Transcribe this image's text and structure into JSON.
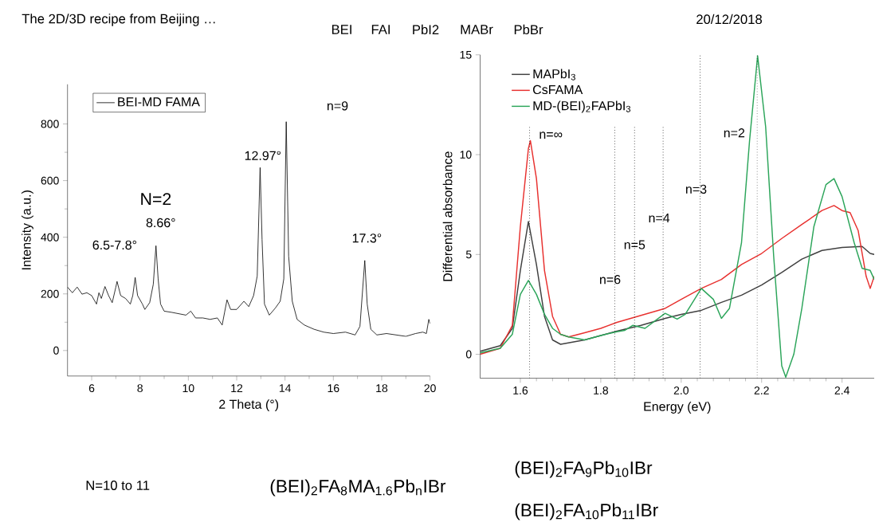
{
  "chart_data": [
    {
      "type": "line",
      "xlabel": "2 Theta (°)",
      "ylabel": "Intensity (a.u.)",
      "x": [
        5.0,
        5.2,
        5.4,
        5.6,
        5.8,
        6.0,
        6.2,
        6.3,
        6.4,
        6.55,
        6.7,
        6.85,
        7.0,
        7.05,
        7.2,
        7.4,
        7.6,
        7.7,
        7.8,
        7.9,
        8.1,
        8.2,
        8.4,
        8.55,
        8.66,
        8.75,
        8.85,
        9.0,
        9.3,
        9.6,
        9.9,
        10.1,
        10.3,
        10.6,
        10.9,
        11.2,
        11.4,
        11.5,
        11.6,
        11.75,
        12.0,
        12.3,
        12.5,
        12.7,
        12.85,
        12.97,
        13.05,
        13.15,
        13.35,
        13.6,
        13.8,
        13.95,
        14.05,
        14.15,
        14.3,
        14.5,
        14.8,
        15.2,
        15.6,
        16.0,
        16.5,
        16.9,
        17.1,
        17.3,
        17.4,
        17.55,
        17.8,
        18.2,
        18.6,
        19.0,
        19.4,
        19.7,
        19.85,
        19.95,
        20.0
      ],
      "series": [
        {
          "name": "BEI-MD FAMA",
          "color": "#000000",
          "values": [
            224,
            204,
            224,
            199,
            204,
            194,
            164,
            204,
            184,
            226,
            194,
            169,
            224,
            244,
            194,
            184,
            164,
            194,
            258,
            194,
            164,
            145,
            169,
            234,
            370,
            253,
            164,
            139,
            135,
            130,
            125,
            139,
            115,
            115,
            110,
            115,
            90,
            135,
            179,
            145,
            145,
            174,
            155,
            194,
            263,
            646,
            392,
            164,
            125,
            150,
            174,
            253,
            808,
            333,
            174,
            110,
            90,
            75,
            65,
            60,
            65,
            55,
            85,
            318,
            164,
            75,
            55,
            60,
            55,
            50,
            60,
            65,
            60,
            110,
            95
          ]
        }
      ],
      "xlim": [
        5,
        20
      ],
      "ylim": [
        -90,
        940
      ],
      "xticks": [
        6,
        8,
        10,
        12,
        14,
        16,
        18,
        20
      ],
      "yticks": [
        0,
        200,
        400,
        600,
        800
      ],
      "legend": "top left",
      "marker": "none",
      "line_style": "solid",
      "annotations": [
        "n=9",
        "12.97°",
        "N=2",
        "8.66°",
        "6.5-7.8°",
        "17.3°",
        "The 2D/3D recipe from Beijing …",
        "BEI",
        "FAI",
        "PbI2",
        "MABr",
        "PbBr",
        "20/12/2018",
        "N=10 to 11",
        "(BEI)$_{2}$FA$_{8}$MA$_{1.6}$Pb$_{n}$IBr",
        "(BEI)$_{2}$FA$_{9}$Pb$_{10}$IBr",
        "(BEI)$_{2}$FA$_{10}$Pb$_{11}$IBr"
      ]
    },
    {
      "type": "line",
      "xlabel": "Energy (eV)",
      "ylabel": "Differential absorbance",
      "series": [
        {
          "name": "MAPbI$_{3}$",
          "color": "#404040",
          "x": [
            1.5,
            1.55,
            1.58,
            1.6,
            1.62,
            1.64,
            1.66,
            1.68,
            1.7,
            1.76,
            1.8,
            1.84,
            1.9,
            1.96,
            2.0,
            2.05,
            2.1,
            2.15,
            2.2,
            2.25,
            2.3,
            2.35,
            2.4,
            2.45,
            2.47,
            2.48
          ],
          "values": [
            0.15,
            0.43,
            1.3,
            4.2,
            6.65,
            4.5,
            1.9,
            0.72,
            0.5,
            0.72,
            0.94,
            1.16,
            1.45,
            1.8,
            2.0,
            2.2,
            2.6,
            2.96,
            3.47,
            4.1,
            4.77,
            5.2,
            5.35,
            5.4,
            5.05,
            5.0
          ]
        },
        {
          "name": "CsFAMA",
          "color": "#e8312f",
          "x": [
            1.5,
            1.55,
            1.58,
            1.6,
            1.62,
            1.625,
            1.64,
            1.66,
            1.68,
            1.7,
            1.72,
            1.76,
            1.8,
            1.84,
            1.9,
            1.96,
            2.0,
            2.05,
            2.1,
            2.15,
            2.2,
            2.25,
            2.3,
            2.35,
            2.38,
            2.4,
            2.42,
            2.44,
            2.46,
            2.47,
            2.48
          ],
          "values": [
            0,
            0.3,
            1.45,
            6.4,
            10.3,
            10.7,
            8.8,
            4.2,
            1.9,
            1.0,
            0.87,
            1.08,
            1.3,
            1.6,
            1.95,
            2.3,
            2.75,
            3.3,
            3.75,
            4.5,
            5.05,
            5.8,
            6.5,
            7.2,
            7.45,
            7.2,
            7.1,
            6.2,
            3.9,
            3.3,
            3.9
          ]
        },
        {
          "name": "MD-(BEI)$_{2}$FAPbI$_{3}$",
          "color": "#2ca55a",
          "x": [
            1.5,
            1.55,
            1.58,
            1.6,
            1.62,
            1.64,
            1.66,
            1.68,
            1.7,
            1.72,
            1.76,
            1.8,
            1.84,
            1.86,
            1.88,
            1.91,
            1.96,
            1.99,
            2.01,
            2.05,
            2.08,
            2.1,
            2.12,
            2.15,
            2.17,
            2.19,
            2.21,
            2.23,
            2.25,
            2.26,
            2.28,
            2.3,
            2.33,
            2.36,
            2.38,
            2.4,
            2.43,
            2.45,
            2.47,
            2.48
          ],
          "values": [
            0.07,
            0.3,
            1.0,
            3.0,
            3.7,
            3.0,
            2.0,
            1.3,
            1.0,
            0.87,
            0.72,
            0.94,
            1.13,
            1.2,
            1.45,
            1.3,
            2.05,
            1.76,
            2.0,
            3.3,
            2.75,
            1.8,
            2.3,
            5.6,
            10.7,
            14.95,
            11.4,
            4.9,
            -0.58,
            -1.15,
            0,
            2.3,
            6.4,
            8.5,
            8.8,
            7.9,
            5.6,
            4.3,
            4.2,
            3.75
          ]
        }
      ],
      "xlim": [
        1.5,
        2.48
      ],
      "ylim": [
        -1.2,
        15
      ],
      "xticks": [
        1.6,
        1.8,
        {
          "value": 2.0,
          "label": "2.0"
        },
        2.2,
        2.4
      ],
      "yticks": [
        0,
        5,
        10,
        15
      ],
      "legend": "top left",
      "marker": "none",
      "line_style": "solid",
      "ref_lines": [
        {
          "axis": "x",
          "value": 1.623,
          "color": "#000000",
          "line_style": "dotted"
        },
        {
          "axis": "x",
          "value": 1.835,
          "color": "#000000",
          "line_style": "dotted"
        },
        {
          "axis": "x",
          "value": 1.884,
          "color": "#000000",
          "line_style": "dotted"
        },
        {
          "axis": "x",
          "value": 1.955,
          "color": "#000000",
          "line_style": "dotted"
        },
        {
          "axis": "x",
          "value": 2.047,
          "color": "#000000",
          "line_style": "dotted"
        },
        {
          "axis": "x",
          "value": 2.189,
          "color": "#000000",
          "line_style": "dotted"
        }
      ],
      "annotations": [
        "n=∞",
        "n=6",
        "n=5",
        "n=4",
        "n=3",
        "n=2"
      ]
    }
  ]
}
